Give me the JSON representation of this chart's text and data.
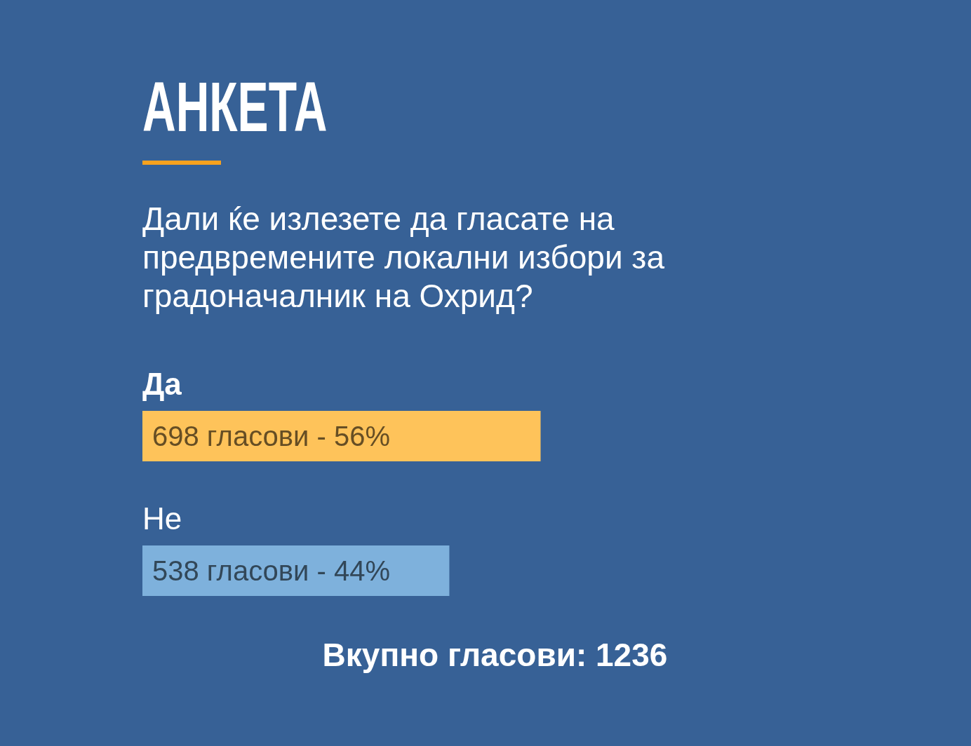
{
  "chart_data": {
    "type": "bar",
    "orientation": "horizontal",
    "title": "АНКЕТА",
    "subtitle": "Дали ќе излезете да гласате на предвремените локални избори за градоначалник на Охрид?",
    "categories": [
      "Да",
      "Не"
    ],
    "values": [
      698,
      538
    ],
    "colors": [
      "#fec35a",
      "#7eb1dc"
    ],
    "value_labels": [
      "698 гласови - 56%",
      "538 гласови - 44%"
    ],
    "tick_labels": "y",
    "annotations": [
      "Вкупно гласови: 1236"
    ]
  }
}
